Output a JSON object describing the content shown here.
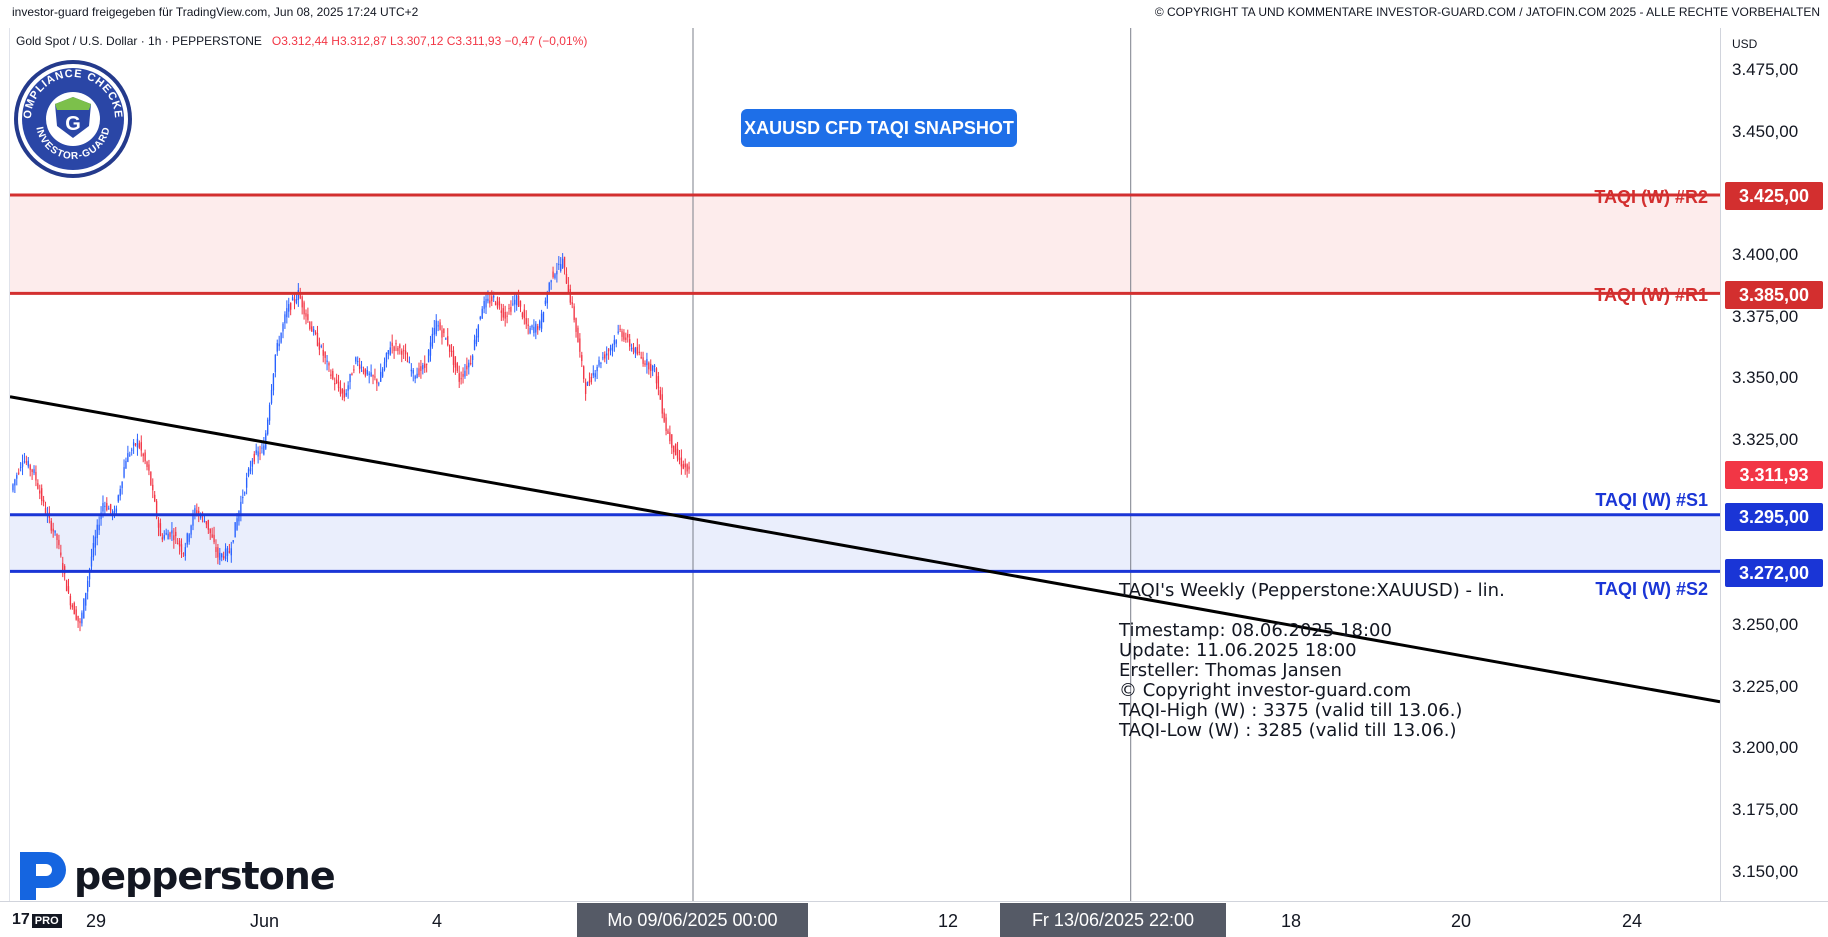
{
  "header": {
    "shared_by": "investor-guard freigegeben für TradingView.com, Jun 08, 2025 17:24 UTC+2",
    "copyright": "© COPYRIGHT TA UND KOMMENTARE INVESTOR-GUARD.COM / JATOFIN.COM 2025 - ALLE RECHTE VORBEHALTEN"
  },
  "series_info": {
    "symbol": "Gold Spot / U.S. Dollar · 1h · PEPPERSTONE",
    "open": "O3.312,44",
    "high": "H3.312,87",
    "low": "L3.307,12",
    "close": "C3.311,93",
    "change": "−0,47 (−0,01%)"
  },
  "snapshot_button": "XAUUSD CFD TAQI SNAPSHOT",
  "levels": [
    {
      "label": "TAQI (W) #R2",
      "price": "3.425,00",
      "color": "#d32f2f"
    },
    {
      "label": "TAQI (W) #R1",
      "price": "3.385,00",
      "color": "#d32f2f"
    },
    {
      "label": "TAQI (W) #S1",
      "price": "3.295,00",
      "color": "#1a35d6"
    },
    {
      "label": "TAQI (W) #S2",
      "price": "3.272,00",
      "color": "#1a35d6"
    }
  ],
  "last_price": {
    "value": "3.311,93",
    "color": "#f23645"
  },
  "price_axis": {
    "currency": "USD",
    "ticks": [
      "3.475,00",
      "3.450,00",
      "3.400,00",
      "3.375,00",
      "3.350,00",
      "3.325,00",
      "3.250,00",
      "3.225,00",
      "3.200,00",
      "3.175,00",
      "3.150,00"
    ]
  },
  "time_axis": {
    "ticks": [
      "29",
      "Jun",
      "4",
      "12",
      "18",
      "20",
      "24"
    ],
    "badges": [
      "Mo 09/06/2025   00:00",
      "Fr 13/06/2025   22:00"
    ]
  },
  "info_box": {
    "title": "TAQI's Weekly (Pepperstone:XAUUSD) - lin.",
    "lines": [
      "Timestamp: 08.06.2025 18:00",
      "Update: 11.06.2025 18:00",
      "Ersteller: Thomas Jansen",
      "© Copyright investor-guard.com",
      "TAQI-High (W) : 3375 (valid till 13.06.)",
      "TAQI-Low (W) : 3285 (valid till 13.06.)"
    ]
  },
  "branding": {
    "broker": "pepperstone",
    "seal_text": "COMPLIANCE CHECKED · INVESTOR-GUARD",
    "tv_badge": "PRO"
  },
  "chart_data": {
    "type": "candlestick",
    "title": "Gold Spot / U.S. Dollar · 1h · PEPPERSTONE",
    "xlabel": "",
    "ylabel": "USD",
    "ylim": [
      3140,
      3485
    ],
    "grid": false,
    "zones": [
      {
        "from": 3385,
        "to": 3425,
        "color": "#fdecec"
      },
      {
        "from": 3272,
        "to": 3295,
        "color": "#eaeefc"
      }
    ],
    "trendline": {
      "from": {
        "date": "2025-05-28",
        "price": 3343
      },
      "to": {
        "date": "2025-06-26",
        "price": 3219
      },
      "color": "#000000"
    },
    "vertical_markers": [
      "2025-06-09 00:00",
      "2025-06-13 22:00"
    ],
    "close_path": [
      3305,
      3318,
      3312,
      3296,
      3285,
      3262,
      3250,
      3278,
      3300,
      3295,
      3318,
      3325,
      3312,
      3286,
      3288,
      3280,
      3297,
      3292,
      3278,
      3280,
      3300,
      3318,
      3322,
      3360,
      3378,
      3385,
      3372,
      3362,
      3350,
      3343,
      3358,
      3352,
      3349,
      3364,
      3362,
      3352,
      3355,
      3373,
      3365,
      3350,
      3358,
      3380,
      3383,
      3376,
      3383,
      3370,
      3372,
      3392,
      3398,
      3375,
      3346,
      3356,
      3362,
      3370,
      3363,
      3358,
      3354,
      3330,
      3318,
      3312
    ]
  }
}
